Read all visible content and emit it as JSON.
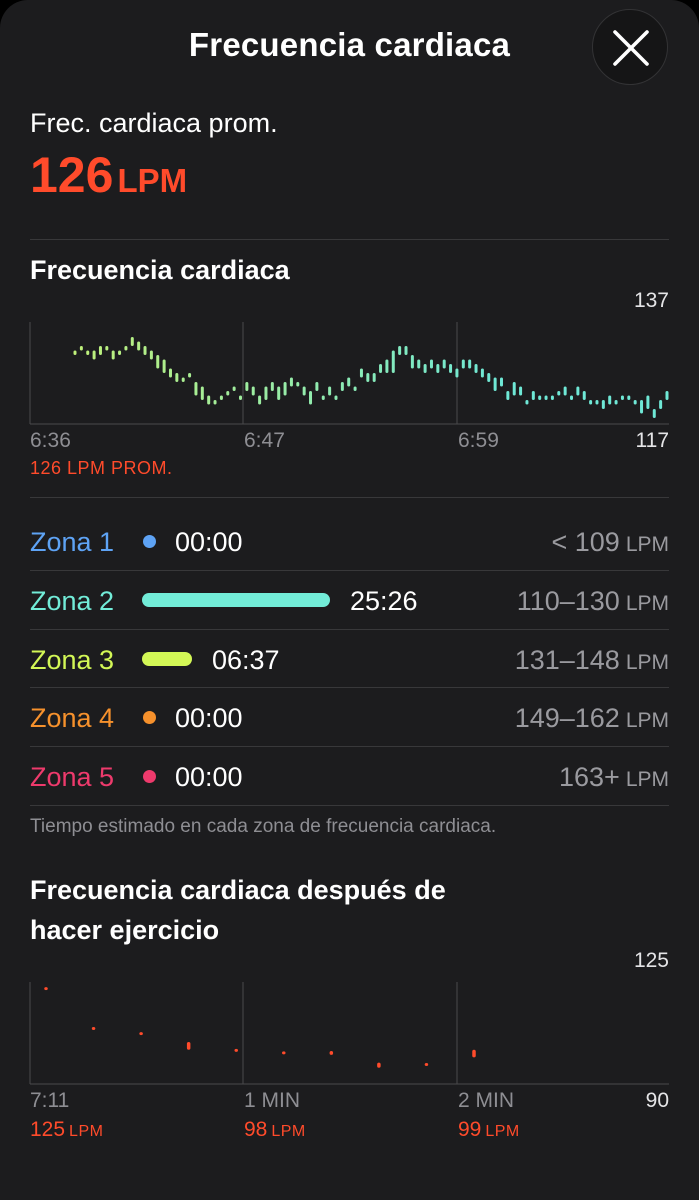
{
  "header": {
    "title": "Frecuencia cardiaca",
    "close_icon": "close-icon"
  },
  "summary": {
    "label": "Frec. cardiaca prom.",
    "value": "126",
    "unit": "LPM"
  },
  "hr_chart": {
    "title": "Frecuencia cardiaca",
    "y_max_label": "137",
    "y_min_label": "117",
    "x_labels": [
      "6:36",
      "6:47",
      "6:59"
    ],
    "avg_label": "126 LPM PROM."
  },
  "zones": [
    {
      "name": "Zona 1",
      "time": "00:00",
      "range": "< 109",
      "unit": "LPM",
      "color": "#5ea3f5",
      "fraction": 0
    },
    {
      "name": "Zona 2",
      "time": "25:26",
      "range": "110–130",
      "unit": "LPM",
      "color": "#72ecd8",
      "fraction": 0.79
    },
    {
      "name": "Zona 3",
      "time": "06:37",
      "range": "131–148",
      "unit": "LPM",
      "color": "#d3f756",
      "fraction": 0.21
    },
    {
      "name": "Zona 4",
      "time": "00:00",
      "range": "149–162",
      "unit": "LPM",
      "color": "#f6912c",
      "fraction": 0
    },
    {
      "name": "Zona 5",
      "time": "00:00",
      "range": "163+",
      "unit": "LPM",
      "color": "#ee3a6c",
      "fraction": 0
    }
  ],
  "zones_footnote": "Tiempo estimado en cada zona de frecuencia cardiaca.",
  "recovery": {
    "title_line1": "Frecuencia cardiaca después de",
    "title_line2": "hacer ejercicio",
    "y_max_label": "125",
    "y_min_label": "90",
    "x_labels": [
      "7:11",
      "1 MIN",
      "2 MIN"
    ],
    "values": [
      {
        "value": "125",
        "unit": "LPM"
      },
      {
        "value": "98",
        "unit": "LPM"
      },
      {
        "value": "99",
        "unit": "LPM"
      }
    ]
  },
  "chart_data": [
    {
      "type": "range-bar",
      "title": "Frecuencia cardiaca",
      "ylim": [
        117,
        137
      ],
      "x_ticks": [
        "6:36",
        "6:47",
        "6:59"
      ],
      "ranges": [
        [
          131,
          132
        ],
        [
          132,
          133
        ],
        [
          131,
          132
        ],
        [
          130,
          132
        ],
        [
          131,
          133
        ],
        [
          132,
          133
        ],
        [
          130,
          132
        ],
        [
          131,
          132
        ],
        [
          132,
          133
        ],
        [
          133,
          135
        ],
        [
          132,
          134
        ],
        [
          131,
          133
        ],
        [
          130,
          132
        ],
        [
          128,
          131
        ],
        [
          127,
          130
        ],
        [
          126,
          128
        ],
        [
          125,
          127
        ],
        [
          125,
          126
        ],
        [
          126,
          127
        ],
        [
          122,
          125
        ],
        [
          121,
          124
        ],
        [
          120,
          122
        ],
        [
          120,
          121
        ],
        [
          121,
          122
        ],
        [
          122,
          123
        ],
        [
          123,
          124
        ],
        [
          121,
          122
        ],
        [
          123,
          125
        ],
        [
          122,
          124
        ],
        [
          120,
          122
        ],
        [
          121,
          124
        ],
        [
          123,
          125
        ],
        [
          121,
          124
        ],
        [
          122,
          125
        ],
        [
          124,
          126
        ],
        [
          124,
          125
        ],
        [
          122,
          124
        ],
        [
          120,
          123
        ],
        [
          123,
          125
        ],
        [
          121,
          122
        ],
        [
          122,
          124
        ],
        [
          121,
          122
        ],
        [
          123,
          125
        ],
        [
          124,
          126
        ],
        [
          123,
          124
        ],
        [
          126,
          128
        ],
        [
          125,
          127
        ],
        [
          125,
          127
        ],
        [
          127,
          129
        ],
        [
          127,
          130
        ],
        [
          127,
          132
        ],
        [
          131,
          133
        ],
        [
          131,
          133
        ],
        [
          128,
          131
        ],
        [
          128,
          130
        ],
        [
          127,
          129
        ],
        [
          128,
          130
        ],
        [
          127,
          129
        ],
        [
          128,
          130
        ],
        [
          127,
          129
        ],
        [
          126,
          128
        ],
        [
          128,
          130
        ],
        [
          128,
          130
        ],
        [
          127,
          129
        ],
        [
          126,
          128
        ],
        [
          125,
          127
        ],
        [
          123,
          126
        ],
        [
          124,
          126
        ],
        [
          121,
          123
        ],
        [
          122,
          125
        ],
        [
          122,
          124
        ],
        [
          120,
          121
        ],
        [
          121,
          123
        ],
        [
          121,
          122
        ],
        [
          121,
          122
        ],
        [
          121,
          122
        ],
        [
          122,
          123
        ],
        [
          122,
          124
        ],
        [
          121,
          122
        ],
        [
          122,
          124
        ],
        [
          121,
          123
        ],
        [
          120,
          121
        ],
        [
          120,
          121
        ],
        [
          119,
          121
        ],
        [
          120,
          122
        ],
        [
          120,
          121
        ],
        [
          121,
          122
        ],
        [
          121,
          122
        ],
        [
          120,
          121
        ],
        [
          118,
          121
        ],
        [
          119,
          122
        ],
        [
          117,
          119
        ],
        [
          119,
          121
        ],
        [
          121,
          123
        ]
      ],
      "average": 126
    },
    {
      "type": "range-bar",
      "title": "Frecuencia cardiaca después de hacer ejercicio",
      "ylim": [
        90,
        125
      ],
      "x_ticks": [
        "7:11",
        "1 MIN",
        "2 MIN"
      ],
      "ranges": [
        [
          124.5,
          125
        ],
        [
          109,
          109.5
        ],
        [
          107,
          107.5
        ],
        [
          101,
          104
        ],
        [
          100.5,
          101
        ],
        [
          99.5,
          100
        ],
        [
          99,
          100.5
        ],
        [
          94,
          96
        ],
        [
          95,
          95.5
        ],
        [
          98,
          101
        ]
      ],
      "summary_values": [
        125,
        98,
        99
      ]
    }
  ]
}
